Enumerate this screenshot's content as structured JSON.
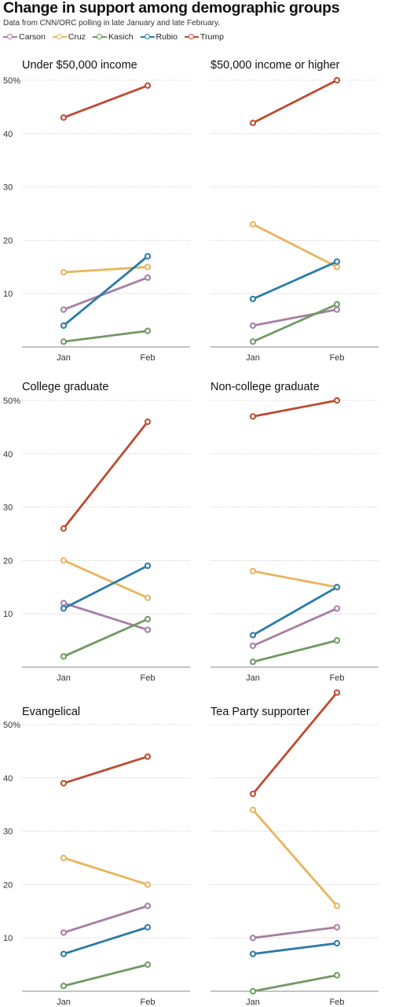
{
  "header": {
    "title": "Change in support among demographic groups",
    "subtitle": "Data from CNN/ORC polling in late January and late February."
  },
  "legend": [
    {
      "name": "Carson",
      "color": "#a87ea5"
    },
    {
      "name": "Cruz",
      "color": "#e8b55c"
    },
    {
      "name": "Kasich",
      "color": "#6f9a63"
    },
    {
      "name": "Rubio",
      "color": "#2a7ba8"
    },
    {
      "name": "Trump",
      "color": "#bf4a30"
    }
  ],
  "chart_data": [
    {
      "type": "line",
      "title": "Under $50,000 income",
      "categories": [
        "Jan",
        "Feb"
      ],
      "ylim": [
        0,
        50
      ],
      "yticks": [
        "10",
        "20",
        "30",
        "40",
        "50%"
      ],
      "series": [
        {
          "name": "Carson",
          "values": [
            7,
            13
          ]
        },
        {
          "name": "Cruz",
          "values": [
            14,
            15
          ]
        },
        {
          "name": "Kasich",
          "values": [
            1,
            3
          ]
        },
        {
          "name": "Rubio",
          "values": [
            4,
            17
          ]
        },
        {
          "name": "Trump",
          "values": [
            43,
            49
          ]
        }
      ]
    },
    {
      "type": "line",
      "title": "$50,000 income or higher",
      "categories": [
        "Jan",
        "Feb"
      ],
      "ylim": [
        0,
        50
      ],
      "yticks": [],
      "series": [
        {
          "name": "Carson",
          "values": [
            4,
            7
          ]
        },
        {
          "name": "Cruz",
          "values": [
            23,
            15
          ]
        },
        {
          "name": "Kasich",
          "values": [
            1,
            8
          ]
        },
        {
          "name": "Rubio",
          "values": [
            9,
            16
          ]
        },
        {
          "name": "Trump",
          "values": [
            42,
            50
          ]
        }
      ]
    },
    {
      "type": "line",
      "title": "College graduate",
      "categories": [
        "Jan",
        "Feb"
      ],
      "ylim": [
        0,
        50
      ],
      "yticks": [
        "10",
        "20",
        "30",
        "40",
        "50%"
      ],
      "series": [
        {
          "name": "Carson",
          "values": [
            12,
            7
          ]
        },
        {
          "name": "Cruz",
          "values": [
            20,
            13
          ]
        },
        {
          "name": "Kasich",
          "values": [
            2,
            9
          ]
        },
        {
          "name": "Rubio",
          "values": [
            11,
            19
          ]
        },
        {
          "name": "Trump",
          "values": [
            26,
            46
          ]
        }
      ]
    },
    {
      "type": "line",
      "title": "Non-college graduate",
      "categories": [
        "Jan",
        "Feb"
      ],
      "ylim": [
        0,
        50
      ],
      "yticks": [],
      "series": [
        {
          "name": "Carson",
          "values": [
            4,
            11
          ]
        },
        {
          "name": "Cruz",
          "values": [
            18,
            15
          ]
        },
        {
          "name": "Kasich",
          "values": [
            1,
            5
          ]
        },
        {
          "name": "Rubio",
          "values": [
            6,
            15
          ]
        },
        {
          "name": "Trump",
          "values": [
            47,
            50
          ]
        }
      ]
    },
    {
      "type": "line",
      "title": "Evangelical",
      "categories": [
        "Jan",
        "Feb"
      ],
      "ylim": [
        0,
        50
      ],
      "yticks": [
        "10",
        "20",
        "30",
        "40",
        "50%"
      ],
      "series": [
        {
          "name": "Carson",
          "values": [
            11,
            16
          ]
        },
        {
          "name": "Cruz",
          "values": [
            25,
            20
          ]
        },
        {
          "name": "Kasich",
          "values": [
            1,
            5
          ]
        },
        {
          "name": "Rubio",
          "values": [
            7,
            12
          ]
        },
        {
          "name": "Trump",
          "values": [
            39,
            44
          ]
        }
      ]
    },
    {
      "type": "line",
      "title": "Tea Party supporter",
      "categories": [
        "Jan",
        "Feb"
      ],
      "ylim": [
        0,
        50
      ],
      "yticks": [],
      "series": [
        {
          "name": "Carson",
          "values": [
            10,
            12
          ]
        },
        {
          "name": "Cruz",
          "values": [
            34,
            16
          ]
        },
        {
          "name": "Kasich",
          "values": [
            0,
            3
          ]
        },
        {
          "name": "Rubio",
          "values": [
            7,
            9
          ]
        },
        {
          "name": "Trump",
          "values": [
            37,
            56
          ]
        }
      ]
    }
  ]
}
